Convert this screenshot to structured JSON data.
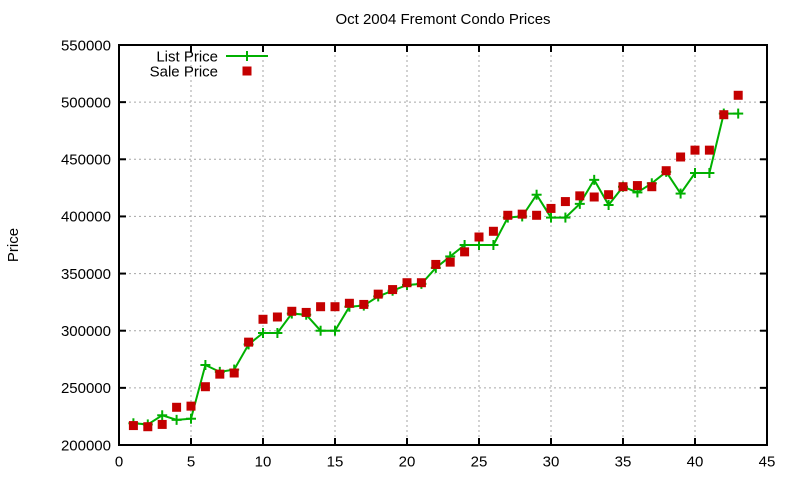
{
  "chart_data": {
    "type": "line",
    "title": "Oct 2004 Fremont Condo Prices",
    "xlabel": "",
    "ylabel": "Price",
    "xlim": [
      0,
      45
    ],
    "ylim": [
      200000,
      550000
    ],
    "xticks": [
      0,
      5,
      10,
      15,
      20,
      25,
      30,
      35,
      40,
      45
    ],
    "yticks": [
      200000,
      250000,
      300000,
      350000,
      400000,
      450000,
      500000,
      550000
    ],
    "grid": true,
    "legend_position": "top-left-inside",
    "x": [
      1,
      2,
      3,
      4,
      5,
      6,
      7,
      8,
      9,
      10,
      11,
      12,
      13,
      14,
      15,
      16,
      17,
      18,
      19,
      20,
      21,
      22,
      23,
      24,
      25,
      26,
      27,
      28,
      29,
      30,
      31,
      32,
      33,
      34,
      35,
      36,
      37,
      38,
      39,
      40,
      41,
      42,
      43
    ],
    "series": [
      {
        "name": "List Price",
        "style": "linespoints",
        "marker": "plus",
        "color": "#00b000",
        "values": [
          219000,
          218000,
          226000,
          222000,
          223000,
          270000,
          264000,
          266000,
          288000,
          298000,
          298000,
          315000,
          314000,
          300000,
          300000,
          321000,
          322000,
          330000,
          335000,
          340000,
          341000,
          355000,
          365000,
          375000,
          375000,
          375000,
          399000,
          400000,
          419000,
          399000,
          399000,
          411000,
          432000,
          410000,
          426000,
          421000,
          429000,
          439000,
          420000,
          438000,
          438000,
          490000,
          490000
        ]
      },
      {
        "name": "Sale Price",
        "style": "points",
        "marker": "square",
        "color": "#c40000",
        "values": [
          217000,
          216000,
          218000,
          233000,
          234000,
          251000,
          262000,
          263000,
          290000,
          310000,
          312000,
          317000,
          316000,
          321000,
          321000,
          324000,
          323000,
          332000,
          336000,
          342000,
          342000,
          358000,
          360000,
          369000,
          382000,
          387000,
          401000,
          402000,
          401000,
          407000,
          413000,
          418000,
          417000,
          419000,
          426000,
          427000,
          426000,
          440000,
          452000,
          458000,
          458000,
          489000,
          506000
        ]
      }
    ]
  },
  "colors": {
    "background": "#ffffff",
    "grid": "#a6a6a6",
    "axis": "#000000",
    "text": "#000000"
  }
}
